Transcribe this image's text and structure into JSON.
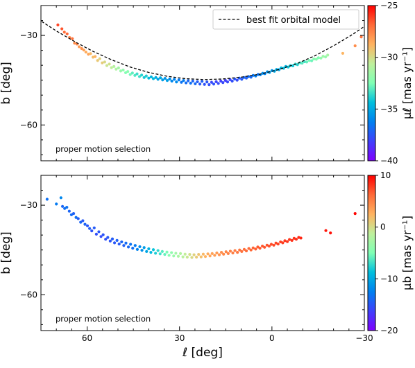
{
  "chart_data": [
    {
      "type": "scatter",
      "panel": "top",
      "xlabel": "ℓ [deg]",
      "ylabel": "b [deg]",
      "xlim": [
        75,
        -30
      ],
      "ylim": [
        -72,
        -20
      ],
      "xticks": [
        60,
        30,
        0,
        -30
      ],
      "yticks": [
        -30,
        -60
      ],
      "annotation": "proper motion selection",
      "legend": {
        "label": "best fit orbital model",
        "placement": "top-right",
        "style": "dashed"
      },
      "colorbar": {
        "label": "μℓ [mas yr⁻¹]",
        "range": [
          -40,
          -25
        ],
        "ticks": [
          -25,
          -30,
          -35,
          -40
        ],
        "colormap": "rainbow"
      },
      "model_curve": {
        "name": "best fit orbital model",
        "x": [
          76,
          70,
          64,
          58,
          52,
          46,
          40,
          34,
          28,
          22,
          16,
          10,
          4,
          -2,
          -8,
          -14,
          -20,
          -26,
          -30
        ],
        "y": [
          -24.5,
          -28.5,
          -32.1,
          -35.4,
          -38.2,
          -40.6,
          -42.4,
          -43.7,
          -44.5,
          -44.8,
          -44.6,
          -44,
          -43,
          -41.5,
          -39.5,
          -36.8,
          -33.5,
          -29.8,
          -27
        ]
      },
      "series": [
        {
          "name": "",
          "x": [
            69.5,
            68.2,
            67.4,
            66.5,
            65.7,
            64.8,
            64.1,
            63.3,
            62.6,
            61.8,
            61.1,
            60.4,
            59.6,
            58.9,
            58.1,
            57.4,
            56.6,
            55.9,
            55.1,
            54.3,
            53.6,
            52.8,
            52.1,
            51.3
          ],
          "y": [
            -26.5,
            -27.8,
            -28.9,
            -29.5,
            -30.7,
            -31.1,
            -32.6,
            -32.9,
            -33.8,
            -34.4,
            -34.9,
            -35.6,
            -36.3,
            -36.1,
            -37.3,
            -37.1,
            -38.4,
            -37.8,
            -39.2,
            -38.9,
            -40.1,
            -39.6,
            -40.8,
            -40.4
          ],
          "c": [
            -26.2,
            -26.5,
            -27,
            -26.8,
            -27.4,
            -27.1,
            -27.8,
            -27.5,
            -28.1,
            -27.9,
            -28.3,
            -28.6,
            -28.4,
            -28.9,
            -29.1,
            -28.8,
            -29.4,
            -29.7,
            -29.5,
            -29.9,
            -30.3,
            -30.1,
            -30.6,
            -30.9
          ]
        },
        {
          "name": "",
          "x": [
            50.6,
            49.8,
            49.1,
            48.3,
            47.5,
            46.8,
            46,
            45.3,
            44.5,
            43.8,
            43,
            42.3,
            41.5,
            40.8,
            40,
            39.2,
            38.5,
            37.7,
            37,
            36.2,
            35.5,
            34.7,
            34,
            33.2
          ],
          "y": [
            -41.3,
            -40.9,
            -41.9,
            -41.6,
            -42.5,
            -42.1,
            -43.1,
            -42.6,
            -43.4,
            -42.9,
            -43.8,
            -43.3,
            -44.1,
            -43.6,
            -44.3,
            -43.9,
            -44.5,
            -44.1,
            -44.7,
            -44.2,
            -44.9,
            -44.4,
            -45.1,
            -44.6
          ],
          "c": [
            -31.1,
            -31.4,
            -31.8,
            -32,
            -32.4,
            -32.2,
            -32.7,
            -33,
            -33.2,
            -33.5,
            -33.4,
            -33.8,
            -34.1,
            -33.9,
            -34.4,
            -34.7,
            -34.5,
            -34.9,
            -35.2,
            -35,
            -35.4,
            -35.6,
            -35.3,
            -35.8
          ]
        },
        {
          "name": "",
          "x": [
            32.5,
            31.7,
            31,
            30.2,
            29.4,
            28.7,
            27.9,
            27.2,
            26.4,
            25.7,
            24.9,
            24.2,
            23.4,
            22.7,
            21.9,
            21.1,
            20.4,
            19.6,
            18.9,
            18.1,
            17.4,
            16.6,
            15.9,
            15.1
          ],
          "y": [
            -45.3,
            -44.7,
            -45.6,
            -44.9,
            -45.7,
            -45.1,
            -45.9,
            -45.2,
            -46,
            -45.3,
            -46.2,
            -45.5,
            -46.3,
            -45.4,
            -46.4,
            -45.6,
            -46.5,
            -45.7,
            -46.3,
            -45.5,
            -46.1,
            -45.3,
            -45.8,
            -45.1
          ],
          "c": [
            -36,
            -36.2,
            -35.9,
            -36.4,
            -36.6,
            -36.3,
            -36.8,
            -37,
            -36.7,
            -37.1,
            -36.9,
            -37.3,
            -37.4,
            -37.2,
            -37.6,
            -37.5,
            -37.7,
            -37.9,
            -37.6,
            -38,
            -37.8,
            -38.1,
            -37.9,
            -38.2
          ]
        },
        {
          "name": "",
          "x": [
            14.4,
            13.6,
            12.9,
            12.1,
            11.3,
            10.6,
            9.8,
            9.1,
            8.3,
            7.6,
            6.8,
            6.1,
            5.3,
            4.5,
            3.8,
            3,
            2.3,
            1.5,
            0.8,
            0,
            -0.8,
            -1.5,
            -2.3,
            -3
          ],
          "y": [
            -45.6,
            -44.8,
            -45.3,
            -44.6,
            -45,
            -44.3,
            -44.7,
            -44.1,
            -44.3,
            -43.8,
            -44,
            -43.4,
            -43.6,
            -43.1,
            -43.2,
            -42.7,
            -42.8,
            -42.2,
            -42.4,
            -41.8,
            -42,
            -41.4,
            -41.5,
            -40.9
          ],
          "c": [
            -37.9,
            -38.1,
            -37.7,
            -37.5,
            -37.8,
            -37.3,
            -37.4,
            -37,
            -37.2,
            -36.8,
            -36.9,
            -36.5,
            -36.3,
            -36.6,
            -36.1,
            -35.9,
            -36.2,
            -35.7,
            -35.4,
            -35.6,
            -35.1,
            -34.9,
            -35.2,
            -34.6
          ]
        },
        {
          "name": "",
          "x": [
            -3.8,
            -4.5,
            -5.3,
            -6,
            -6.8,
            -7.6,
            -8.3,
            -9.1,
            -9.8,
            -10.6,
            -11.3,
            -12.1,
            -12.9,
            -13.6,
            -14.4,
            -15.1,
            -15.9,
            -16.6,
            -17.4,
            -18.1,
            -23,
            -27,
            -29
          ],
          "y": [
            -41,
            -40.4,
            -40.6,
            -40.1,
            -40.2,
            -39.6,
            -39.8,
            -39.2,
            -39.3,
            -38.8,
            -38.9,
            -38.4,
            -38.5,
            -37.9,
            -38,
            -37.5,
            -37.6,
            -37,
            -37.2,
            -36.6,
            -36,
            -33.5,
            -30.5
          ],
          "c": [
            -34.4,
            -34.7,
            -34.2,
            -33.9,
            -34.1,
            -33.6,
            -33.8,
            -33.3,
            -33.1,
            -33.4,
            -32.9,
            -32.6,
            -32.8,
            -32.3,
            -32.1,
            -32.4,
            -31.9,
            -31.6,
            -31.8,
            -31.3,
            -28.8,
            -27.8,
            -27.2
          ]
        }
      ]
    },
    {
      "type": "scatter",
      "panel": "bottom",
      "xlabel": "ℓ [deg]",
      "ylabel": "b [deg]",
      "xlim": [
        75,
        -30
      ],
      "ylim": [
        -72,
        -20
      ],
      "xticks": [
        60,
        30,
        0,
        -30
      ],
      "yticks": [
        -30,
        -60
      ],
      "annotation": "proper motion selection",
      "colorbar": {
        "label": "μb [mas yr⁻¹]",
        "range": [
          -20,
          10
        ],
        "ticks": [
          10,
          0,
          -10,
          -20
        ],
        "colormap": "rainbow"
      },
      "series": [
        {
          "name": "",
          "x": [
            73,
            70,
            68.5,
            68,
            67.3,
            66.6,
            65.8,
            65.1,
            64.4,
            63.6,
            62.9,
            62.1,
            61.4,
            60.7,
            59.9,
            59.2,
            58.5,
            57.7,
            57,
            56.2,
            55.5,
            54.8,
            54,
            53.3
          ],
          "y": [
            -28,
            -29.6,
            -27.5,
            -30.4,
            -31.1,
            -30.7,
            -32,
            -33.2,
            -32.8,
            -34.1,
            -34.5,
            -35.7,
            -35.2,
            -36.4,
            -36.9,
            -37.8,
            -38.6,
            -37.6,
            -39.7,
            -38.9,
            -40.5,
            -39.9,
            -41.4,
            -40.8
          ],
          "c": [
            -13.4,
            -12.8,
            -12.1,
            -14,
            -13.5,
            -13.2,
            -14.1,
            -13.7,
            -14.3,
            -13.4,
            -14.6,
            -14,
            -14.8,
            -14.2,
            -15,
            -14.5,
            -15.2,
            -14.7,
            -15.4,
            -14.9,
            -15.6,
            -15,
            -15.3,
            -14.8
          ]
        },
        {
          "name": "",
          "x": [
            52.5,
            51.8,
            51.1,
            50.3,
            49.6,
            48.8,
            48.1,
            47.4,
            46.6,
            45.9,
            45.2,
            44.4,
            43.7,
            42.9,
            42.2,
            41.5,
            40.7,
            40,
            39.3,
            38.5,
            37.8,
            37,
            36.3,
            35.6
          ],
          "y": [
            -42,
            -41.3,
            -42.6,
            -41.8,
            -43,
            -42.3,
            -43.5,
            -42.7,
            -44,
            -43.1,
            -44.4,
            -43.5,
            -44.8,
            -43.9,
            -45.1,
            -44.2,
            -45.5,
            -44.6,
            -45.8,
            -44.9,
            -46.1,
            -45.2,
            -46.3,
            -45.5
          ],
          "c": [
            -15.1,
            -14.6,
            -14.9,
            -14.3,
            -14.7,
            -14,
            -14.4,
            -13.7,
            -13.9,
            -13.2,
            -13.5,
            -12.8,
            -12.3,
            -11.9,
            -11.4,
            -10.8,
            -10.2,
            -9.6,
            -9,
            -8.5,
            -7.9,
            -7.3,
            -6.8,
            -6.2
          ]
        },
        {
          "name": "",
          "x": [
            34.8,
            34.1,
            33.4,
            32.6,
            31.9,
            31.2,
            30.4,
            29.7,
            28.9,
            28.2,
            27.5,
            26.7,
            26,
            25.3,
            24.5,
            23.8,
            23,
            22.3,
            21.6,
            20.8,
            20.1,
            19.4,
            18.6,
            17.9
          ],
          "y": [
            -46.5,
            -45.7,
            -46.8,
            -45.9,
            -47,
            -46.1,
            -47.1,
            -46.2,
            -47.3,
            -46.4,
            -47.4,
            -46.5,
            -47.5,
            -46.6,
            -47.4,
            -46.5,
            -47.3,
            -46.4,
            -47.2,
            -46.3,
            -47,
            -46.2,
            -46.8,
            -46
          ],
          "c": [
            -5.8,
            -5.1,
            -4.6,
            -4,
            -3.5,
            -3,
            -2.5,
            -2,
            -1.6,
            -1.1,
            -0.7,
            -0.2,
            0.3,
            0.7,
            1.1,
            1.5,
            1.8,
            2.2,
            2.5,
            2.9,
            3.2,
            3.4,
            3.7,
            3.9
          ]
        },
        {
          "name": "",
          "x": [
            17.1,
            16.4,
            15.7,
            14.9,
            14.2,
            13.5,
            12.7,
            12,
            11.2,
            10.5,
            9.8,
            9,
            8.3,
            7.5,
            6.8,
            6.1,
            5.3,
            4.6,
            3.9,
            3.1,
            2.4,
            1.6,
            0.9,
            0.2
          ],
          "y": [
            -46.6,
            -45.8,
            -46.4,
            -45.6,
            -46.2,
            -45.4,
            -46,
            -45.2,
            -45.8,
            -45,
            -45.5,
            -44.8,
            -45.3,
            -44.5,
            -45,
            -44.3,
            -44.7,
            -44,
            -44.4,
            -43.7,
            -44.1,
            -43.4,
            -43.7,
            -43.1
          ],
          "c": [
            4.2,
            4.4,
            4.6,
            4.8,
            5,
            5.1,
            5.3,
            5.4,
            5.6,
            5.7,
            5.8,
            6,
            6.1,
            6.2,
            6.3,
            6.5,
            6.6,
            6.7,
            6.8,
            6.9,
            7,
            7.1,
            7.2,
            7.3
          ]
        },
        {
          "name": "",
          "x": [
            -0.6,
            -1.3,
            -2,
            -2.8,
            -3.5,
            -4.2,
            -5,
            -5.7,
            -6.5,
            -7.2,
            -7.9,
            -8.7,
            -9.4,
            -17.5,
            -19,
            -27
          ],
          "y": [
            -43.4,
            -42.7,
            -43,
            -42.3,
            -42.6,
            -41.9,
            -42.2,
            -41.5,
            -41.8,
            -41.1,
            -41.4,
            -40.8,
            -41,
            -38.5,
            -39.3,
            -32.8
          ],
          "c": [
            7.4,
            7.5,
            7.6,
            7.7,
            7.8,
            7.9,
            8,
            8.1,
            8.2,
            8.3,
            8.4,
            8.5,
            8.6,
            9.2,
            9.4,
            9.8
          ]
        }
      ]
    }
  ]
}
